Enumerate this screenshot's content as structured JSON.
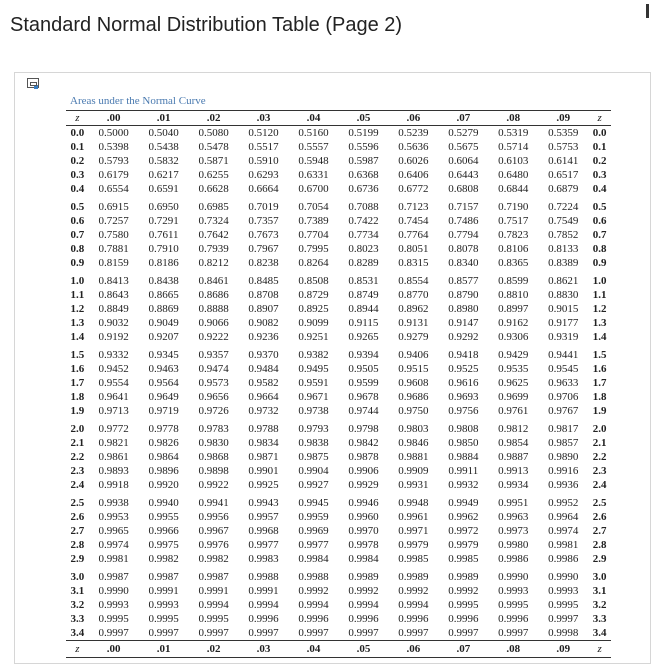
{
  "page_title": "Standard Normal Distribution Table (Page 2)",
  "caption": "Areas under the Normal Curve",
  "columns": [
    "z",
    ".00",
    ".01",
    ".02",
    ".03",
    ".04",
    ".05",
    ".06",
    ".07",
    ".08",
    ".09",
    "z"
  ],
  "rows": [
    {
      "z": "0.0",
      "v": [
        "0.5000",
        "0.5040",
        "0.5080",
        "0.5120",
        "0.5160",
        "0.5199",
        "0.5239",
        "0.5279",
        "0.5319",
        "0.5359"
      ]
    },
    {
      "z": "0.1",
      "v": [
        "0.5398",
        "0.5438",
        "0.5478",
        "0.5517",
        "0.5557",
        "0.5596",
        "0.5636",
        "0.5675",
        "0.5714",
        "0.5753"
      ]
    },
    {
      "z": "0.2",
      "v": [
        "0.5793",
        "0.5832",
        "0.5871",
        "0.5910",
        "0.5948",
        "0.5987",
        "0.6026",
        "0.6064",
        "0.6103",
        "0.6141"
      ]
    },
    {
      "z": "0.3",
      "v": [
        "0.6179",
        "0.6217",
        "0.6255",
        "0.6293",
        "0.6331",
        "0.6368",
        "0.6406",
        "0.6443",
        "0.6480",
        "0.6517"
      ]
    },
    {
      "z": "0.4",
      "v": [
        "0.6554",
        "0.6591",
        "0.6628",
        "0.6664",
        "0.6700",
        "0.6736",
        "0.6772",
        "0.6808",
        "0.6844",
        "0.6879"
      ]
    },
    {
      "z": "0.5",
      "v": [
        "0.6915",
        "0.6950",
        "0.6985",
        "0.7019",
        "0.7054",
        "0.7088",
        "0.7123",
        "0.7157",
        "0.7190",
        "0.7224"
      ]
    },
    {
      "z": "0.6",
      "v": [
        "0.7257",
        "0.7291",
        "0.7324",
        "0.7357",
        "0.7389",
        "0.7422",
        "0.7454",
        "0.7486",
        "0.7517",
        "0.7549"
      ]
    },
    {
      "z": "0.7",
      "v": [
        "0.7580",
        "0.7611",
        "0.7642",
        "0.7673",
        "0.7704",
        "0.7734",
        "0.7764",
        "0.7794",
        "0.7823",
        "0.7852"
      ]
    },
    {
      "z": "0.8",
      "v": [
        "0.7881",
        "0.7910",
        "0.7939",
        "0.7967",
        "0.7995",
        "0.8023",
        "0.8051",
        "0.8078",
        "0.8106",
        "0.8133"
      ]
    },
    {
      "z": "0.9",
      "v": [
        "0.8159",
        "0.8186",
        "0.8212",
        "0.8238",
        "0.8264",
        "0.8289",
        "0.8315",
        "0.8340",
        "0.8365",
        "0.8389"
      ]
    },
    {
      "z": "1.0",
      "v": [
        "0.8413",
        "0.8438",
        "0.8461",
        "0.8485",
        "0.8508",
        "0.8531",
        "0.8554",
        "0.8577",
        "0.8599",
        "0.8621"
      ]
    },
    {
      "z": "1.1",
      "v": [
        "0.8643",
        "0.8665",
        "0.8686",
        "0.8708",
        "0.8729",
        "0.8749",
        "0.8770",
        "0.8790",
        "0.8810",
        "0.8830"
      ]
    },
    {
      "z": "1.2",
      "v": [
        "0.8849",
        "0.8869",
        "0.8888",
        "0.8907",
        "0.8925",
        "0.8944",
        "0.8962",
        "0.8980",
        "0.8997",
        "0.9015"
      ]
    },
    {
      "z": "1.3",
      "v": [
        "0.9032",
        "0.9049",
        "0.9066",
        "0.9082",
        "0.9099",
        "0.9115",
        "0.9131",
        "0.9147",
        "0.9162",
        "0.9177"
      ]
    },
    {
      "z": "1.4",
      "v": [
        "0.9192",
        "0.9207",
        "0.9222",
        "0.9236",
        "0.9251",
        "0.9265",
        "0.9279",
        "0.9292",
        "0.9306",
        "0.9319"
      ]
    },
    {
      "z": "1.5",
      "v": [
        "0.9332",
        "0.9345",
        "0.9357",
        "0.9370",
        "0.9382",
        "0.9394",
        "0.9406",
        "0.9418",
        "0.9429",
        "0.9441"
      ]
    },
    {
      "z": "1.6",
      "v": [
        "0.9452",
        "0.9463",
        "0.9474",
        "0.9484",
        "0.9495",
        "0.9505",
        "0.9515",
        "0.9525",
        "0.9535",
        "0.9545"
      ]
    },
    {
      "z": "1.7",
      "v": [
        "0.9554",
        "0.9564",
        "0.9573",
        "0.9582",
        "0.9591",
        "0.9599",
        "0.9608",
        "0.9616",
        "0.9625",
        "0.9633"
      ]
    },
    {
      "z": "1.8",
      "v": [
        "0.9641",
        "0.9649",
        "0.9656",
        "0.9664",
        "0.9671",
        "0.9678",
        "0.9686",
        "0.9693",
        "0.9699",
        "0.9706"
      ]
    },
    {
      "z": "1.9",
      "v": [
        "0.9713",
        "0.9719",
        "0.9726",
        "0.9732",
        "0.9738",
        "0.9744",
        "0.9750",
        "0.9756",
        "0.9761",
        "0.9767"
      ]
    },
    {
      "z": "2.0",
      "v": [
        "0.9772",
        "0.9778",
        "0.9783",
        "0.9788",
        "0.9793",
        "0.9798",
        "0.9803",
        "0.9808",
        "0.9812",
        "0.9817"
      ]
    },
    {
      "z": "2.1",
      "v": [
        "0.9821",
        "0.9826",
        "0.9830",
        "0.9834",
        "0.9838",
        "0.9842",
        "0.9846",
        "0.9850",
        "0.9854",
        "0.9857"
      ]
    },
    {
      "z": "2.2",
      "v": [
        "0.9861",
        "0.9864",
        "0.9868",
        "0.9871",
        "0.9875",
        "0.9878",
        "0.9881",
        "0.9884",
        "0.9887",
        "0.9890"
      ]
    },
    {
      "z": "2.3",
      "v": [
        "0.9893",
        "0.9896",
        "0.9898",
        "0.9901",
        "0.9904",
        "0.9906",
        "0.9909",
        "0.9911",
        "0.9913",
        "0.9916"
      ]
    },
    {
      "z": "2.4",
      "v": [
        "0.9918",
        "0.9920",
        "0.9922",
        "0.9925",
        "0.9927",
        "0.9929",
        "0.9931",
        "0.9932",
        "0.9934",
        "0.9936"
      ]
    },
    {
      "z": "2.5",
      "v": [
        "0.9938",
        "0.9940",
        "0.9941",
        "0.9943",
        "0.9945",
        "0.9946",
        "0.9948",
        "0.9949",
        "0.9951",
        "0.9952"
      ]
    },
    {
      "z": "2.6",
      "v": [
        "0.9953",
        "0.9955",
        "0.9956",
        "0.9957",
        "0.9959",
        "0.9960",
        "0.9961",
        "0.9962",
        "0.9963",
        "0.9964"
      ]
    },
    {
      "z": "2.7",
      "v": [
        "0.9965",
        "0.9966",
        "0.9967",
        "0.9968",
        "0.9969",
        "0.9970",
        "0.9971",
        "0.9972",
        "0.9973",
        "0.9974"
      ]
    },
    {
      "z": "2.8",
      "v": [
        "0.9974",
        "0.9975",
        "0.9976",
        "0.9977",
        "0.9977",
        "0.9978",
        "0.9979",
        "0.9979",
        "0.9980",
        "0.9981"
      ]
    },
    {
      "z": "2.9",
      "v": [
        "0.9981",
        "0.9982",
        "0.9982",
        "0.9983",
        "0.9984",
        "0.9984",
        "0.9985",
        "0.9985",
        "0.9986",
        "0.9986"
      ]
    },
    {
      "z": "3.0",
      "v": [
        "0.9987",
        "0.9987",
        "0.9987",
        "0.9988",
        "0.9988",
        "0.9989",
        "0.9989",
        "0.9989",
        "0.9990",
        "0.9990"
      ]
    },
    {
      "z": "3.1",
      "v": [
        "0.9990",
        "0.9991",
        "0.9991",
        "0.9991",
        "0.9992",
        "0.9992",
        "0.9992",
        "0.9992",
        "0.9993",
        "0.9993"
      ]
    },
    {
      "z": "3.2",
      "v": [
        "0.9993",
        "0.9993",
        "0.9994",
        "0.9994",
        "0.9994",
        "0.9994",
        "0.9994",
        "0.9995",
        "0.9995",
        "0.9995"
      ]
    },
    {
      "z": "3.3",
      "v": [
        "0.9995",
        "0.9995",
        "0.9995",
        "0.9996",
        "0.9996",
        "0.9996",
        "0.9996",
        "0.9996",
        "0.9996",
        "0.9997"
      ]
    },
    {
      "z": "3.4",
      "v": [
        "0.9997",
        "0.9997",
        "0.9997",
        "0.9997",
        "0.9997",
        "0.9997",
        "0.9997",
        "0.9997",
        "0.9997",
        "0.9998"
      ]
    }
  ]
}
